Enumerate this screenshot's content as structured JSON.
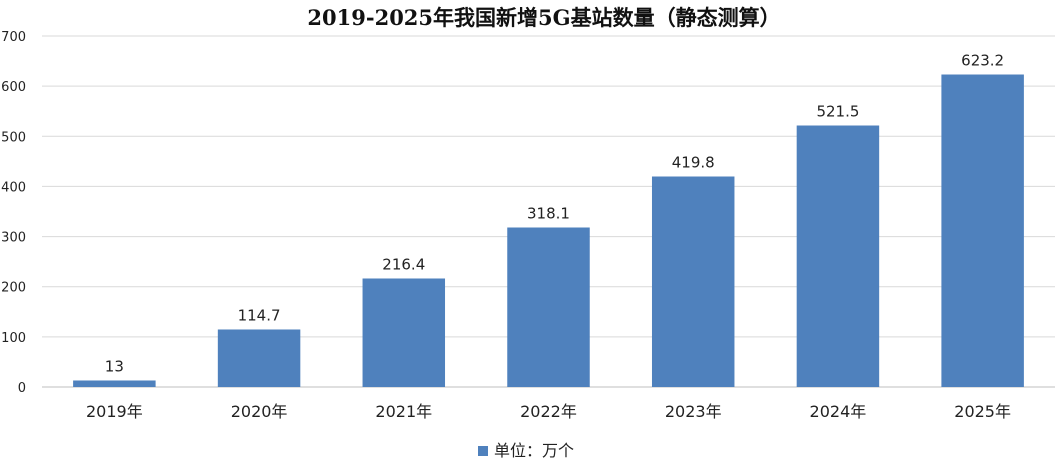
{
  "chart_data": {
    "type": "bar",
    "title": "2019-2025年我国新增5G基站数量（静态测算）",
    "categories": [
      "2019年",
      "2020年",
      "2021年",
      "2022年",
      "2023年",
      "2024年",
      "2025年"
    ],
    "series": [
      {
        "name": "单位：万个",
        "values": [
          13,
          114.7,
          216.4,
          318.1,
          419.8,
          521.5,
          623.2
        ],
        "color": "#4f81bd"
      }
    ],
    "data_labels": [
      "13",
      "114.7",
      "216.4",
      "318.1",
      "419.8",
      "521.5",
      "623.2"
    ],
    "ylim": [
      0,
      700
    ],
    "yticks": [
      0,
      100,
      200,
      300,
      400,
      500,
      600,
      700
    ],
    "xlabel": "",
    "ylabel": "",
    "grid": true,
    "legend_position": "bottom-center"
  }
}
